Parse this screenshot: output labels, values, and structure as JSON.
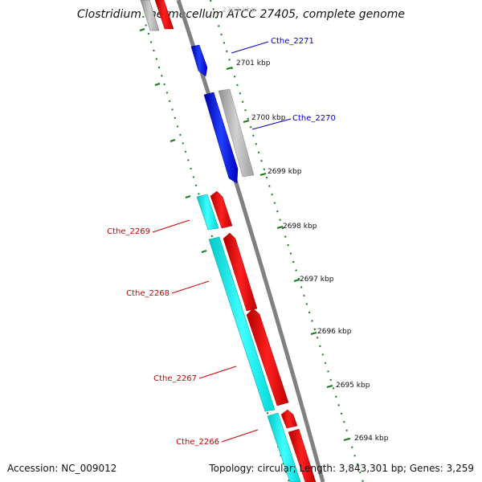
{
  "title": "Clostridium thermocellum ATCC 27405, complete genome",
  "footer": {
    "accession": "Accession: NC_009012",
    "summary": "Topology: circular; Length: 3,843,301 bp; Genes: 3,259"
  },
  "colors": {
    "backbone": "#808080",
    "tick": "#1a7a1a",
    "gene_blue": "#0000ff",
    "gene_red": "#ff0000",
    "gene_cyan": "#00ffff",
    "gene_gray": "#b8b8b8",
    "label_blue": "#0000cc",
    "label_red": "#cc0000"
  },
  "ticks": [
    {
      "label": "2701 kbp"
    },
    {
      "label": "2700 kbp"
    },
    {
      "label": "2699 kbp"
    },
    {
      "label": "2698 kbp"
    },
    {
      "label": "2697 kbp"
    },
    {
      "label": "2696 kbp"
    },
    {
      "label": "2695 kbp"
    },
    {
      "label": "2694 kbp"
    }
  ],
  "top_partial_tick": "2702 kbp",
  "gene_labels": [
    {
      "text": "Cthe_2271",
      "color": "blue"
    },
    {
      "text": "Cthe_2270",
      "color": "blue"
    },
    {
      "text": "Cthe_2269",
      "color": "red"
    },
    {
      "text": "Cthe_2268",
      "color": "red"
    },
    {
      "text": "Cthe_2267",
      "color": "red"
    },
    {
      "text": "Cthe_2266",
      "color": "red"
    }
  ]
}
